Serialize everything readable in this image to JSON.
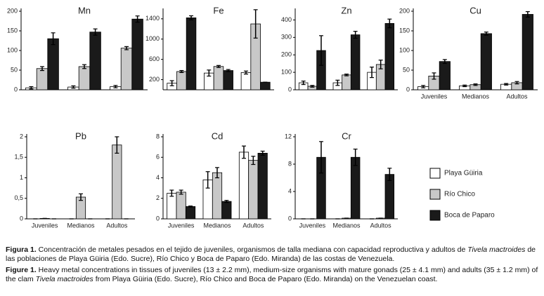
{
  "chart_data": [
    {
      "type": "bar",
      "title": "Mn",
      "categories": [
        null,
        null,
        null
      ],
      "ylim": [
        0,
        200
      ],
      "yticks": [
        0,
        50,
        100,
        150,
        200
      ],
      "series": [
        {
          "name": "Playa Güiria",
          "color": "#ffffff",
          "values": [
            5,
            7,
            8
          ],
          "errors": [
            3,
            3,
            3
          ]
        },
        {
          "name": "Río Chico",
          "color": "#c8c8c8",
          "values": [
            54,
            59,
            106
          ],
          "errors": [
            5,
            5,
            4
          ]
        },
        {
          "name": "Boca de Paparo",
          "color": "#1a1a1a",
          "values": [
            130,
            147,
            180
          ],
          "errors": [
            15,
            8,
            8
          ]
        }
      ]
    },
    {
      "type": "bar",
      "title": "Fe",
      "categories": [
        null,
        null,
        null
      ],
      "ylim": [
        0,
        1550
      ],
      "yticks": [
        200,
        600,
        1000,
        1400
      ],
      "series": [
        {
          "name": "Playa Güiria",
          "color": "#ffffff",
          "values": [
            130,
            330,
            340
          ],
          "errors": [
            50,
            60,
            30
          ]
        },
        {
          "name": "Río Chico",
          "color": "#c8c8c8",
          "values": [
            360,
            460,
            1300
          ],
          "errors": [
            20,
            20,
            280
          ]
        },
        {
          "name": "Boca de Paparo",
          "color": "#1a1a1a",
          "values": [
            1420,
            380,
            150
          ],
          "errors": [
            40,
            20,
            0
          ]
        }
      ]
    },
    {
      "type": "bar",
      "title": "Zn",
      "categories": [
        null,
        null,
        null
      ],
      "ylim": [
        0,
        450
      ],
      "yticks": [
        0,
        100,
        200,
        300,
        400
      ],
      "series": [
        {
          "name": "Playa Güiria",
          "color": "#ffffff",
          "values": [
            40,
            40,
            100
          ],
          "errors": [
            10,
            15,
            30
          ]
        },
        {
          "name": "Río Chico",
          "color": "#c8c8c8",
          "values": [
            20,
            85,
            145
          ],
          "errors": [
            5,
            5,
            25
          ]
        },
        {
          "name": "Boca de Paparo",
          "color": "#1a1a1a",
          "values": [
            225,
            315,
            380
          ],
          "errors": [
            85,
            20,
            25
          ]
        }
      ]
    },
    {
      "type": "bar",
      "title": "Cu",
      "categories": [
        "Juveniles",
        "Medianos",
        "Adultos"
      ],
      "ylim": [
        0,
        200
      ],
      "yticks": [
        0,
        50,
        100,
        150,
        200
      ],
      "series": [
        {
          "name": "Playa Güiria",
          "color": "#ffffff",
          "values": [
            8,
            10,
            14
          ],
          "errors": [
            3,
            2,
            2
          ]
        },
        {
          "name": "Río Chico",
          "color": "#c8c8c8",
          "values": [
            35,
            13,
            18
          ],
          "errors": [
            8,
            2,
            3
          ]
        },
        {
          "name": "Boca de Paparo",
          "color": "#1a1a1a",
          "values": [
            72,
            143,
            192
          ],
          "errors": [
            5,
            4,
            7
          ]
        }
      ]
    },
    {
      "type": "bar",
      "title": "Pb",
      "categories": [
        "Juveniles",
        "Medianos",
        "Adultos"
      ],
      "ylim": [
        0,
        2
      ],
      "yticks": [
        0,
        {
          "value": 0.5,
          "label": "0,5"
        },
        1,
        {
          "value": 1.5,
          "label": "1,5"
        },
        2
      ],
      "series": [
        {
          "name": "Playa Güiria",
          "color": "#ffffff",
          "values": [
            0,
            0,
            0
          ],
          "errors": [
            0,
            0,
            0
          ]
        },
        {
          "name": "Río Chico",
          "color": "#c8c8c8",
          "values": [
            0.01,
            0.53,
            1.8
          ],
          "errors": [
            0,
            0.08,
            0.2
          ]
        },
        {
          "name": "Boca de Paparo",
          "color": "#1a1a1a",
          "values": [
            0,
            0,
            0
          ],
          "errors": [
            0,
            0,
            0
          ]
        }
      ]
    },
    {
      "type": "bar",
      "title": "Cd",
      "categories": [
        "Juveniles",
        "Medianos",
        "Adultos"
      ],
      "ylim": [
        0,
        8
      ],
      "yticks": [
        0,
        2,
        4,
        6,
        8
      ],
      "series": [
        {
          "name": "Playa Güiria",
          "color": "#ffffff",
          "values": [
            2.5,
            3.8,
            6.5
          ],
          "errors": [
            0.3,
            0.8,
            0.6
          ]
        },
        {
          "name": "Río Chico",
          "color": "#c8c8c8",
          "values": [
            2.6,
            4.5,
            5.7
          ],
          "errors": [
            0.2,
            0.5,
            0.4
          ]
        },
        {
          "name": "Boca de Paparo",
          "color": "#1a1a1a",
          "values": [
            1.2,
            1.7,
            6.4
          ],
          "errors": [
            0.05,
            0.1,
            0.2
          ]
        }
      ]
    },
    {
      "type": "bar",
      "title": "Cr",
      "categories": [
        "Juveniles",
        "Medianos",
        "Adultos"
      ],
      "ylim": [
        0,
        12
      ],
      "yticks": [
        0,
        4,
        8,
        12
      ],
      "series": [
        {
          "name": "Playa Güiria",
          "color": "#ffffff",
          "values": [
            0,
            0,
            0
          ],
          "errors": [
            0,
            0,
            0
          ]
        },
        {
          "name": "Río Chico",
          "color": "#c8c8c8",
          "values": [
            0,
            0.1,
            0.1
          ],
          "errors": [
            0,
            0,
            0
          ]
        },
        {
          "name": "Boca de Paparo",
          "color": "#1a1a1a",
          "values": [
            9,
            9,
            6.5
          ],
          "errors": [
            2.3,
            1.2,
            0.9
          ]
        }
      ]
    }
  ],
  "captions": [
    {
      "label": "Figura 1.",
      "parts": [
        " Concentración de metales pesados en el tejido de juveniles, organismos de talla mediana con capacidad reproductiva y adultos de ",
        "Tivela mactroides",
        " de las poblaciones de Playa Güiria (Edo. Sucre), Río Chico y Boca de Paparo (Edo. Miranda) de las costas de Venezuela."
      ]
    },
    {
      "label": "Figure 1.",
      "parts": [
        " Heavy metal concentrations in tissues of juveniles (13 ± 2.2 mm), medium-size organisms with mature gonads (25 ± 4.1 mm) and adults (35 ± 1.2 mm) of the clam ",
        "Tivela mactroides",
        " from Playa Güiria (Edo. Sucre), Río Chico and Boca de Paparo (Edo. Miranda) on the Venezuelan coast."
      ]
    }
  ]
}
